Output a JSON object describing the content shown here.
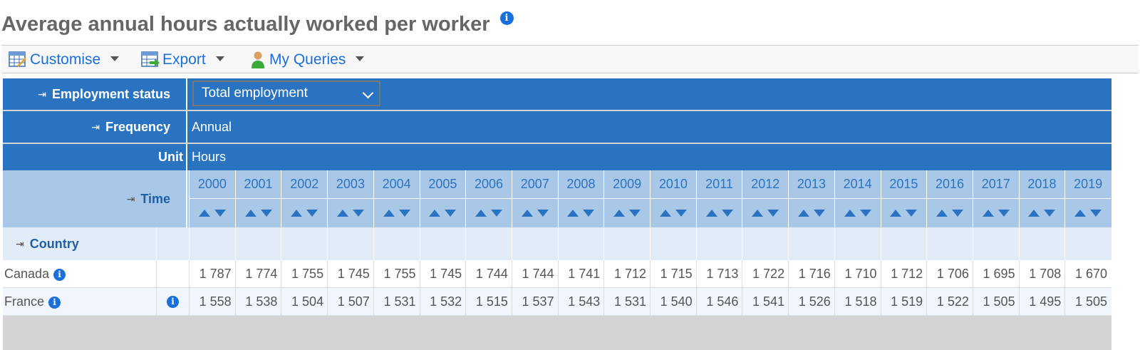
{
  "title": "Average annual hours actually worked per worker",
  "toolbar": {
    "customise": "Customise",
    "export": "Export",
    "queries": "My Queries"
  },
  "filters": {
    "employment_status_label": "Employment status",
    "employment_status_value": "Total employment",
    "frequency_label": "Frequency",
    "frequency_value": "Annual",
    "unit_label": "Unit",
    "unit_value": "Hours"
  },
  "time_label": "Time",
  "country_label": "Country",
  "years": [
    "2000",
    "2001",
    "2002",
    "2003",
    "2004",
    "2005",
    "2006",
    "2007",
    "2008",
    "2009",
    "2010",
    "2011",
    "2012",
    "2013",
    "2014",
    "2015",
    "2016",
    "2017",
    "2018",
    "2019"
  ],
  "rows": [
    {
      "country": "Canada",
      "values": [
        "1 787",
        "1 774",
        "1 755",
        "1 745",
        "1 755",
        "1 745",
        "1 744",
        "1 744",
        "1 741",
        "1 712",
        "1 715",
        "1 713",
        "1 722",
        "1 716",
        "1 710",
        "1 712",
        "1 706",
        "1 695",
        "1 708",
        "1 670"
      ]
    },
    {
      "country": "France",
      "values": [
        "1 558",
        "1 538",
        "1 504",
        "1 507",
        "1 531",
        "1 532",
        "1 515",
        "1 537",
        "1 543",
        "1 531",
        "1 540",
        "1 546",
        "1 541",
        "1 526",
        "1 518",
        "1 519",
        "1 522",
        "1 505",
        "1 495",
        "1 505"
      ]
    }
  ],
  "icons": {
    "info": "i",
    "indent": "⇥"
  },
  "colors": {
    "header_blue": "#2a73c0",
    "time_blue": "#a9c8e8",
    "link_blue": "#1a6fdb"
  }
}
